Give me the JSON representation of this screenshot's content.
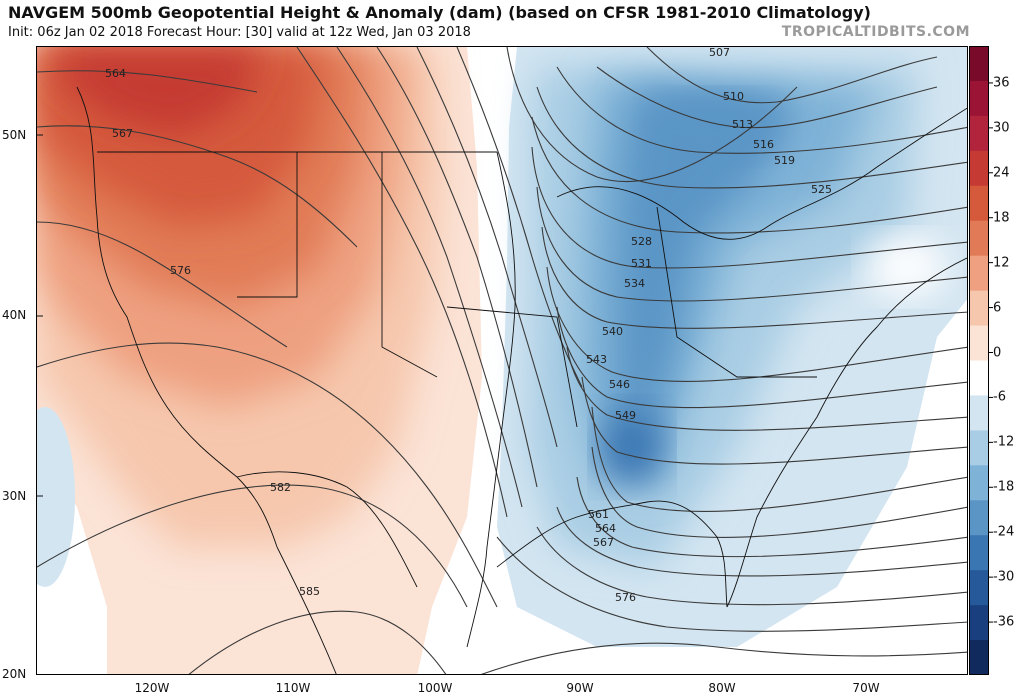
{
  "header": {
    "title": "NAVGEM 500mb Geopotential Height & Anomaly (dam) (based on CFSR 1981-2010 Climatology)",
    "subtitle": "Init: 06z Jan 02 2018   Forecast Hour: [30]   valid at 12z Wed, Jan 03 2018",
    "credit": "TROPICALTIDBITS.COM"
  },
  "axes": {
    "lat_labels": [
      "50N",
      "40N",
      "30N",
      "20N"
    ],
    "lon_labels": [
      "120W",
      "110W",
      "100W",
      "90W",
      "80W",
      "70W"
    ]
  },
  "contour_labels": [
    "564",
    "567",
    "576",
    "582",
    "585",
    "507",
    "510",
    "513",
    "516",
    "519",
    "525",
    "528",
    "531",
    "534",
    "540",
    "543",
    "546",
    "549",
    "561",
    "564",
    "567",
    "576"
  ],
  "colorbar": {
    "ticks": [
      "36",
      "30",
      "24",
      "18",
      "12",
      "6",
      "0",
      "-6",
      "-12",
      "-18",
      "-24",
      "-30",
      "-36"
    ],
    "colors": [
      "#7a0a2a",
      "#9b1436",
      "#b2243b",
      "#c53a33",
      "#d55a3c",
      "#e17b57",
      "#eea080",
      "#f6c7ad",
      "#fbe3d6",
      "#ffffff",
      "#d3e5f1",
      "#a9cde4",
      "#7fb2d7",
      "#5a95c6",
      "#3a76b2",
      "#25599a",
      "#1a3f7e",
      "#102a5e"
    ]
  }
}
